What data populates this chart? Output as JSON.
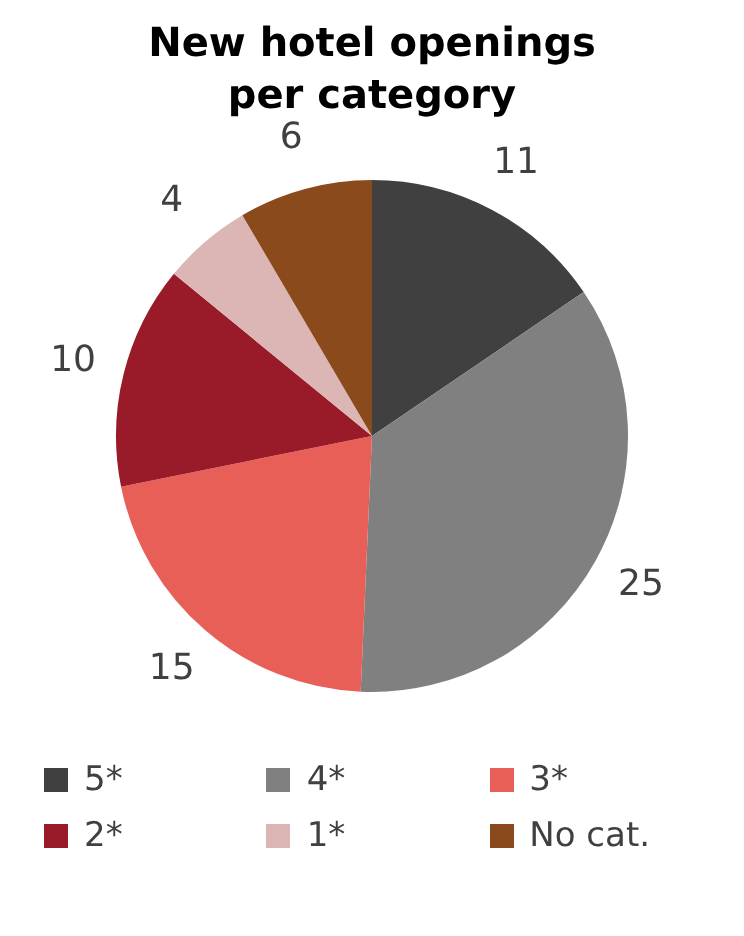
{
  "chart_data": {
    "type": "pie",
    "title": "New hotel openings per category",
    "categories": [
      "5*",
      "4*",
      "3*",
      "2*",
      "1*",
      "No cat."
    ],
    "values": [
      11,
      25,
      15,
      10,
      4,
      6
    ],
    "colors": [
      "#404040",
      "#808080",
      "#e85f58",
      "#991b2a",
      "#dcb5b5",
      "#8b4a1c"
    ],
    "data_labels": true,
    "legend": "bottom"
  }
}
